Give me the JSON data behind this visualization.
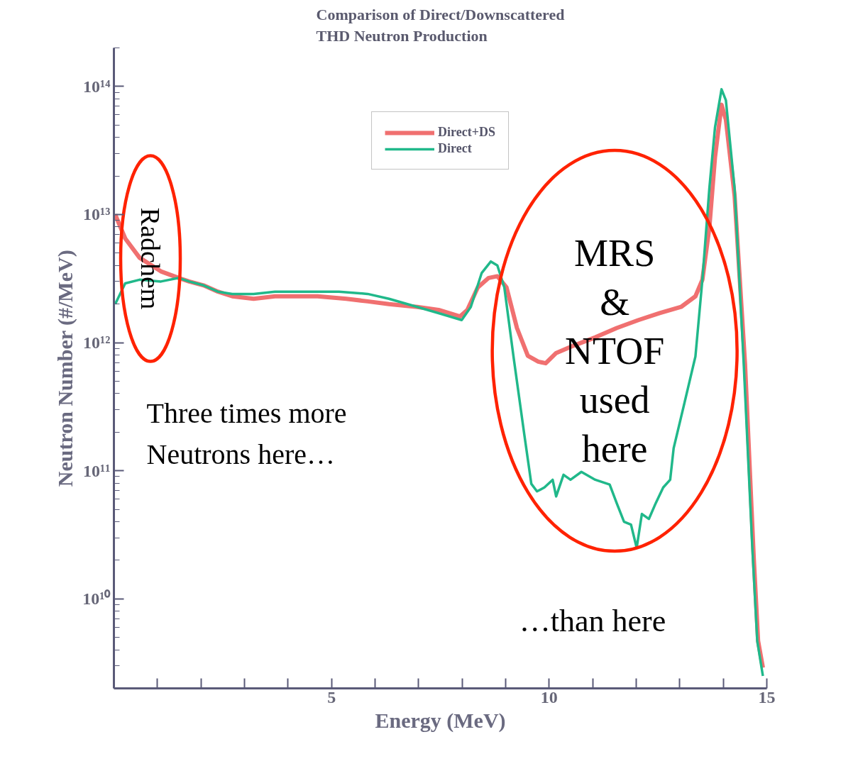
{
  "chart_data": {
    "type": "line",
    "title": "Comparison of Direct/Downscattered\nTHD Neutron Production",
    "xlabel": "Energy (MeV)",
    "ylabel": "Neutron Number (#/MeV)",
    "log": "y",
    "grid": false,
    "legend": "top",
    "line_style": "solid",
    "marker": "none",
    "xlim": [
      0,
      15
    ],
    "ylim": [
      2000000000.0,
      200000000000000.0
    ],
    "xticks": [
      {
        "value": 1,
        "label": null
      },
      {
        "value": 2,
        "label": null
      },
      {
        "value": 3,
        "label": null
      },
      {
        "value": 4,
        "label": null
      },
      5,
      {
        "value": 6,
        "label": null
      },
      {
        "value": 7,
        "label": null
      },
      {
        "value": 8,
        "label": null
      },
      {
        "value": 9,
        "label": null
      },
      10,
      {
        "value": 11,
        "label": null
      },
      {
        "value": 12,
        "label": null
      },
      {
        "value": 13,
        "label": null
      },
      {
        "value": 14,
        "label": null
      },
      15
    ],
    "yticks": [
      {
        "value": 10000000000.0,
        "label": "10¹⁰"
      },
      {
        "value": 100000000000.0,
        "label": "10¹¹"
      },
      {
        "value": 1000000000000.0,
        "label": "10¹²"
      },
      {
        "value": 10000000000000.0,
        "label": "10¹³"
      },
      {
        "value": 100000000000000.0,
        "label": "10¹⁴"
      }
    ],
    "series": [
      {
        "name": "Direct+DS",
        "color": "#f07070",
        "x": [
          0.03,
          0.26,
          0.59,
          1.08,
          1.49,
          1.73,
          2.06,
          2.39,
          2.72,
          3.21,
          3.7,
          4.19,
          4.68,
          5.34,
          5.83,
          6.32,
          6.97,
          7.46,
          7.95,
          8.12,
          8.36,
          8.61,
          8.81,
          9.02,
          9.26,
          9.51,
          9.75,
          9.92,
          10.16,
          10.57,
          11.06,
          11.55,
          12.05,
          12.54,
          13.03,
          13.36,
          13.52,
          13.68,
          13.81,
          13.96,
          14.06,
          14.26,
          14.5,
          14.7,
          14.8,
          14.91
        ],
        "values": [
          10000000000000.0,
          6500000000000.0,
          4600000000000.0,
          3600000000000.0,
          3200000000000.0,
          3000000000000.0,
          2800000000000.0,
          2500000000000.0,
          2300000000000.0,
          2200000000000.0,
          2300000000000.0,
          2300000000000.0,
          2300000000000.0,
          2200000000000.0,
          2100000000000.0,
          2000000000000.0,
          1900000000000.0,
          1800000000000.0,
          1600000000000.0,
          1800000000000.0,
          2700000000000.0,
          3200000000000.0,
          3300000000000.0,
          2700000000000.0,
          1300000000000.0,
          790000000000.0,
          710000000000.0,
          690000000000.0,
          830000000000.0,
          950000000000.0,
          1100000000000.0,
          1300000000000.0,
          1500000000000.0,
          1700000000000.0,
          1900000000000.0,
          2300000000000.0,
          3100000000000.0,
          7900000000000.0,
          28000000000000.0,
          72000000000000.0,
          55000000000000.0,
          14000000000000.0,
          680000000000.0,
          21000000000.0,
          4700000000.0,
          2900000000.0
        ]
      },
      {
        "name": "Direct",
        "color": "#20b88a",
        "x": [
          0.03,
          0.26,
          0.59,
          1.08,
          1.49,
          1.73,
          2.06,
          2.39,
          2.72,
          3.21,
          3.7,
          4.19,
          4.68,
          5.17,
          5.83,
          6.32,
          6.97,
          7.46,
          7.99,
          8.2,
          8.45,
          8.66,
          8.81,
          8.97,
          9.18,
          9.43,
          9.59,
          9.72,
          9.89,
          10.08,
          10.16,
          10.33,
          10.49,
          10.74,
          11.06,
          11.39,
          11.55,
          11.72,
          11.88,
          12.01,
          12.13,
          12.29,
          12.45,
          12.62,
          12.78,
          12.86,
          13.11,
          13.36,
          13.52,
          13.68,
          13.81,
          13.96,
          14.06,
          14.26,
          14.47,
          14.66,
          14.78,
          14.91
        ],
        "values": [
          2000000000000.0,
          2900000000000.0,
          3100000000000.0,
          3000000000000.0,
          3200000000000.0,
          3000000000000.0,
          2800000000000.0,
          2500000000000.0,
          2400000000000.0,
          2400000000000.0,
          2500000000000.0,
          2500000000000.0,
          2500000000000.0,
          2500000000000.0,
          2400000000000.0,
          2200000000000.0,
          1900000000000.0,
          1700000000000.0,
          1500000000000.0,
          1900000000000.0,
          3500000000000.0,
          4300000000000.0,
          4000000000000.0,
          2700000000000.0,
          780000000000.0,
          190000000000.0,
          79000000000.0,
          69000000000.0,
          74000000000.0,
          85000000000.0,
          63000000000.0,
          93000000000.0,
          85000000000.0,
          98000000000.0,
          85000000000.0,
          78000000000.0,
          56000000000.0,
          40000000000.0,
          38000000000.0,
          25000000000.0,
          46000000000.0,
          42000000000.0,
          56000000000.0,
          74000000000.0,
          85000000000.0,
          150000000000.0,
          340000000000.0,
          780000000000.0,
          3100000000000.0,
          16000000000000.0,
          48000000000000.0,
          95000000000000.0,
          78000000000000.0,
          16000000000000.0,
          680000000000.0,
          28000000000.0,
          4700000000.0,
          2500000000.0
        ]
      }
    ],
    "annotations": [
      "Radchem",
      "MRS\n&\nNTOF\nused\nhere",
      "Three times more\nNeutrons here…",
      "…than here"
    ]
  }
}
